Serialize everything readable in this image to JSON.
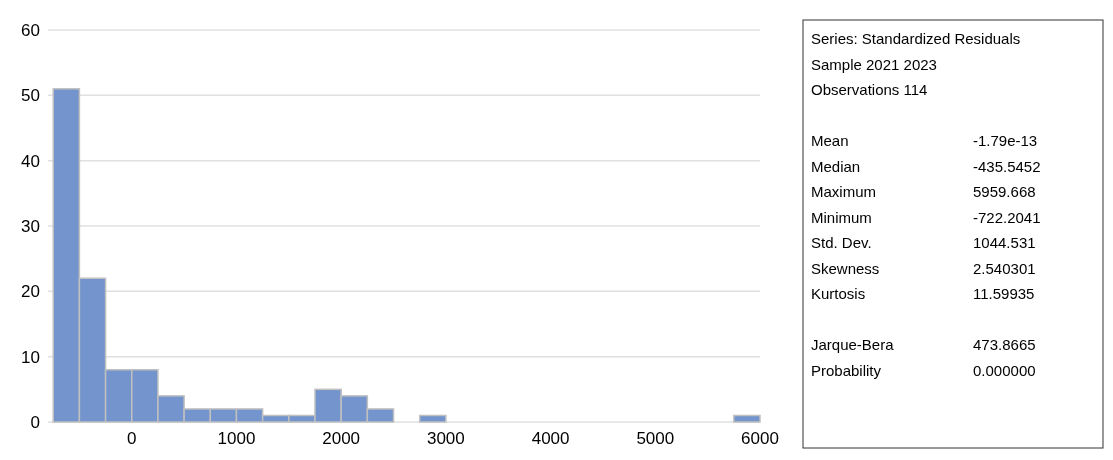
{
  "chart_data": {
    "type": "histogram",
    "bins": [
      -750,
      -500,
      -250,
      0,
      250,
      500,
      750,
      1000,
      1250,
      1500,
      1750,
      2000,
      2250,
      2500,
      2750,
      3000,
      3250,
      3500,
      3750,
      4000,
      4250,
      4500,
      4750,
      5000,
      5250,
      5500,
      5750,
      6000
    ],
    "values": [
      51,
      22,
      8,
      8,
      4,
      2,
      2,
      2,
      1,
      1,
      5,
      4,
      2,
      0,
      1,
      0,
      0,
      0,
      0,
      0,
      0,
      0,
      0,
      0,
      0,
      0,
      1
    ],
    "color": "#7394cc",
    "xlim": [
      -800,
      6000
    ],
    "xticks": [
      0,
      1000,
      2000,
      3000,
      4000,
      5000,
      6000
    ],
    "ylim": [
      0,
      60
    ],
    "yticks": [
      0,
      10,
      20,
      30,
      40,
      50,
      60
    ],
    "grid": "y",
    "annotations": [
      "Series: Standardized Residuals",
      "Sample 2021 2023",
      "Observations 114",
      "Mean\t-1.79e-13",
      "Median\t-435.5452",
      "Maximum\t5959.668",
      "Minimum\t-722.2041",
      "Std. Dev.\t1044.531",
      "Skewness\t2.540301",
      "Kurtosis\t11.59935",
      "Jarque-Bera\t473.8665",
      "Probability\t0.000000"
    ]
  }
}
